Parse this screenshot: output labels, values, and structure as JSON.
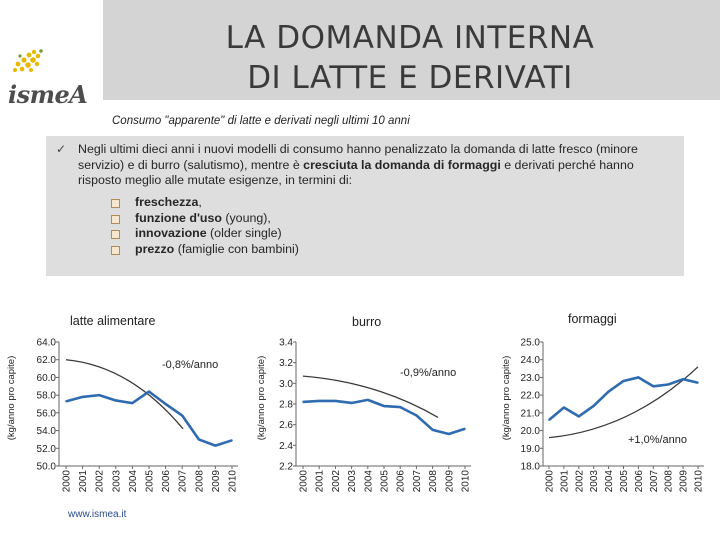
{
  "header": {
    "title_line1": "LA DOMANDA INTERNA",
    "title_line2": "DI LATTE E DERIVATI",
    "logo_text": "ismeA"
  },
  "subtitle": "Consumo \"apparente\" di latte e derivati negli ultimi 10 anni",
  "info": {
    "check": "✓",
    "para_a": "Negli ultimi dieci anni i nuovi modelli di consumo hanno penalizzato la domanda di latte fresco (minore servizio) e di burro (salutismo), mentre è ",
    "para_bold": "cresciuta la domanda di formaggi",
    "para_b": " e derivati perché hanno risposto meglio alle mutate esigenze, in termini di:",
    "bullets": [
      {
        "bold": "freschezza",
        "rest": ","
      },
      {
        "bold": "funzione d'uso",
        "rest": " (young),"
      },
      {
        "bold": "innovazione",
        "rest": " (older single)"
      },
      {
        "bold": "prezzo",
        "rest": " (famiglie con bambini)"
      }
    ]
  },
  "colors": {
    "series_line": "#2e6bb0",
    "trend_line": "#3a3a3a",
    "axis": "#666666",
    "title_band": "#d4d4d4",
    "info_box": "#dedede"
  },
  "chart_data": [
    {
      "type": "line",
      "title": "latte alimentare",
      "xlabel": "",
      "ylabel": "(kg/anno pro capite)",
      "ylim": [
        50.0,
        64.0
      ],
      "yticks": [
        "64.0",
        "62.0",
        "60.0",
        "58.0",
        "56.0",
        "54.0",
        "52.0",
        "50.0"
      ],
      "categories": [
        "2000",
        "2001",
        "2002",
        "2003",
        "2004",
        "2005",
        "2006",
        "2007",
        "2008",
        "2009",
        "2010"
      ],
      "series": [
        {
          "name": "latte alimentare",
          "values": [
            57.3,
            57.8,
            58.0,
            57.4,
            57.1,
            58.4,
            57.0,
            55.7,
            53.0,
            52.3,
            52.9
          ]
        }
      ],
      "trend": {
        "values_start": 62.0,
        "values_end": 54.2,
        "label": "-0,8%/anno"
      }
    },
    {
      "type": "line",
      "title": "burro",
      "xlabel": "",
      "ylabel": "(kg/anno pro capite)",
      "ylim": [
        2.2,
        3.4
      ],
      "yticks": [
        "3.4",
        "3.2",
        "3.0",
        "2.8",
        "2.6",
        "2.4",
        "2.2"
      ],
      "categories": [
        "2000",
        "2001",
        "2002",
        "2003",
        "2004",
        "2005",
        "2006",
        "2007",
        "2008",
        "2009",
        "2010"
      ],
      "series": [
        {
          "name": "burro",
          "values": [
            2.82,
            2.83,
            2.83,
            2.81,
            2.84,
            2.78,
            2.77,
            2.69,
            2.55,
            2.51,
            2.56
          ]
        }
      ],
      "trend": {
        "values_start": 3.07,
        "values_end": 2.67,
        "label": "-0,9%/anno"
      }
    },
    {
      "type": "line",
      "title": "formaggi",
      "xlabel": "",
      "ylabel": "(kg/anno pro capite)",
      "ylim": [
        18.0,
        25.0
      ],
      "yticks": [
        "25.0",
        "24.0",
        "23.0",
        "22.0",
        "21.0",
        "20.0",
        "19.0",
        "18.0"
      ],
      "categories": [
        "2000",
        "2001",
        "2002",
        "2003",
        "2004",
        "2005",
        "2006",
        "2007",
        "2008",
        "2009",
        "2010"
      ],
      "series": [
        {
          "name": "formaggi",
          "values": [
            20.6,
            21.3,
            20.8,
            21.4,
            22.2,
            22.8,
            23.0,
            22.5,
            22.6,
            22.9,
            22.7
          ]
        }
      ],
      "trend": {
        "values_start": 19.6,
        "values_end": 23.6,
        "label": "+1,0%/anno"
      }
    }
  ],
  "footer": {
    "url": "www.ismea.it"
  }
}
